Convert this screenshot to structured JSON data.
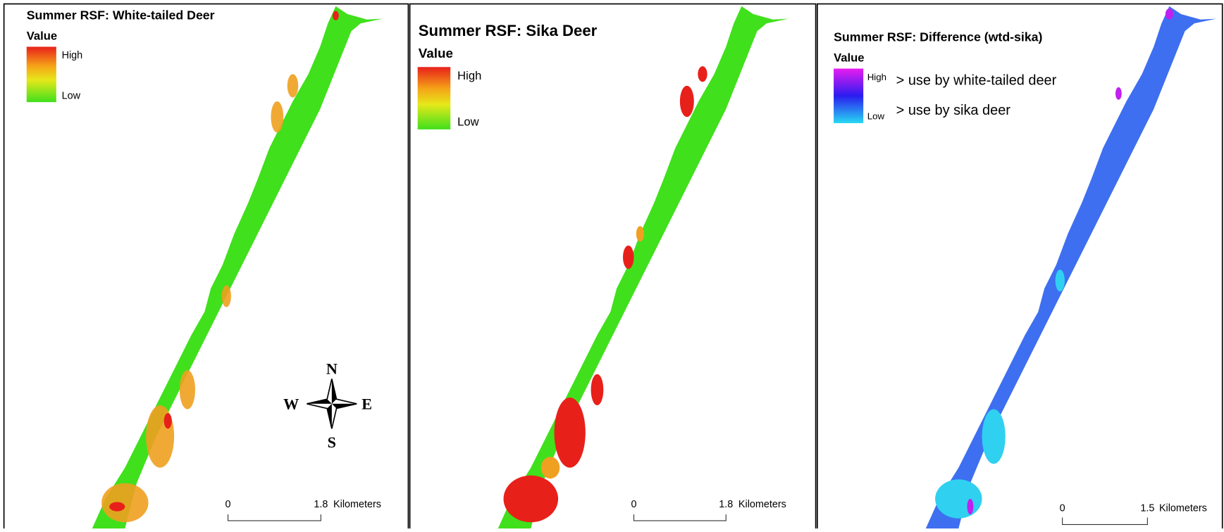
{
  "panels": [
    {
      "title": "Summer RSF: White-tailed Deer",
      "legend_title": "Value",
      "legend": {
        "high": "High",
        "low": "Low"
      },
      "scale_bar": {
        "start": 0,
        "end": 1.8,
        "unit": "Kilometers"
      }
    },
    {
      "title": "Summer RSF: Sika Deer",
      "legend_title": "Value",
      "legend": {
        "high": "High",
        "low": "Low"
      },
      "scale_bar": {
        "start": 0,
        "end": 1.8,
        "unit": "Kilometers"
      }
    },
    {
      "title": "Summer RSF: Difference (wtd-sika)",
      "legend_title": "Value",
      "legend": {
        "high": "High",
        "low": "Low"
      },
      "notes": {
        "high": "> use by white-tailed deer",
        "low": "> use by sika deer"
      },
      "scale_bar": {
        "start": 0,
        "end": 1.5,
        "unit": "Kilometers"
      }
    }
  ],
  "compass": {
    "n": "N",
    "e": "E",
    "s": "S",
    "w": "W"
  }
}
